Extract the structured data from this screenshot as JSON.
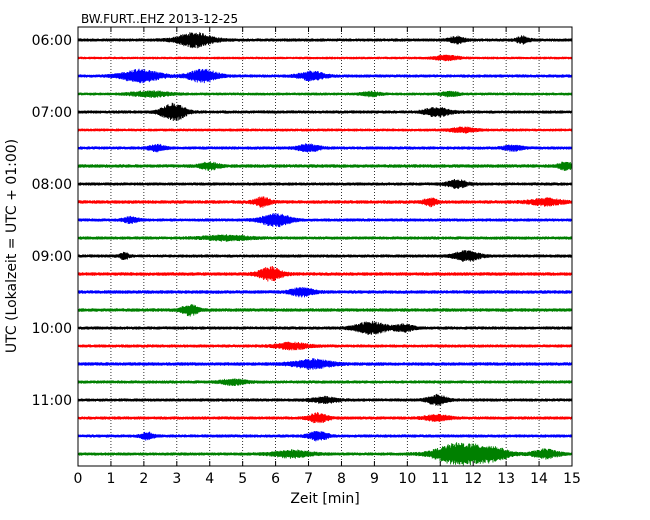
{
  "chart_data": {
    "type": "line",
    "title": "BW.FURT..EHZ 2013-12-25",
    "xlabel": "Zeit  [min]",
    "ylabel": "UTC (Lokalzeit = UTC + 01:00)",
    "xlim": [
      0,
      15
    ],
    "x_ticks": [
      "0",
      "1",
      "2",
      "3",
      "4",
      "5",
      "6",
      "7",
      "8",
      "9",
      "10",
      "11",
      "12",
      "13",
      "14",
      "15"
    ],
    "y_tick_labels": [
      "06:00",
      "07:00",
      "08:00",
      "09:00",
      "10:00",
      "11:00"
    ],
    "trace_interval_min": 15,
    "trace_start_times": [
      "06:00",
      "06:15",
      "06:30",
      "06:45",
      "07:00",
      "07:15",
      "07:30",
      "07:45",
      "08:00",
      "08:15",
      "08:30",
      "08:45",
      "09:00",
      "09:15",
      "09:30",
      "09:45",
      "10:00",
      "10:15",
      "10:30",
      "10:45",
      "11:00",
      "11:15",
      "11:30",
      "11:45"
    ],
    "trace_colors": [
      "#000000",
      "#ff0000",
      "#0000ff",
      "#008000"
    ],
    "grid": "vertical dotted",
    "series": [
      {
        "start": "06:00",
        "color": "#000000",
        "base_amplitude": 1.0,
        "events": [
          {
            "t": 3.55,
            "amp": 4.2,
            "width": 0.55
          },
          {
            "t": 11.5,
            "amp": 1.8,
            "width": 0.25
          },
          {
            "t": 13.5,
            "amp": 2.0,
            "width": 0.2
          }
        ]
      },
      {
        "start": "06:15",
        "color": "#ff0000",
        "base_amplitude": 0.8,
        "events": [
          {
            "t": 11.2,
            "amp": 1.3,
            "width": 0.4
          }
        ]
      },
      {
        "start": "06:30",
        "color": "#0000ff",
        "base_amplitude": 1.0,
        "events": [
          {
            "t": 1.9,
            "amp": 3.6,
            "width": 0.6
          },
          {
            "t": 3.8,
            "amp": 3.8,
            "width": 0.45
          },
          {
            "t": 7.1,
            "amp": 2.5,
            "width": 0.4
          }
        ]
      },
      {
        "start": "06:45",
        "color": "#008000",
        "base_amplitude": 0.9,
        "events": [
          {
            "t": 2.2,
            "amp": 1.6,
            "width": 0.6
          },
          {
            "t": 8.9,
            "amp": 1.2,
            "width": 0.3
          },
          {
            "t": 11.3,
            "amp": 1.2,
            "width": 0.3
          }
        ]
      },
      {
        "start": "07:00",
        "color": "#000000",
        "base_amplitude": 1.0,
        "events": [
          {
            "t": 2.75,
            "amp": 3.0,
            "width": 0.3
          },
          {
            "t": 3.05,
            "amp": 3.2,
            "width": 0.3
          },
          {
            "t": 10.9,
            "amp": 2.6,
            "width": 0.4
          }
        ]
      },
      {
        "start": "07:15",
        "color": "#ff0000",
        "base_amplitude": 0.9,
        "events": [
          {
            "t": 11.7,
            "amp": 1.4,
            "width": 0.4
          }
        ]
      },
      {
        "start": "07:30",
        "color": "#0000ff",
        "base_amplitude": 1.0,
        "events": [
          {
            "t": 2.4,
            "amp": 1.8,
            "width": 0.25
          },
          {
            "t": 7.0,
            "amp": 2.0,
            "width": 0.35
          },
          {
            "t": 13.2,
            "amp": 1.5,
            "width": 0.3
          }
        ]
      },
      {
        "start": "07:45",
        "color": "#008000",
        "base_amplitude": 1.1,
        "events": [
          {
            "t": 4.0,
            "amp": 2.0,
            "width": 0.3
          },
          {
            "t": 14.8,
            "amp": 2.5,
            "width": 0.2
          }
        ]
      },
      {
        "start": "08:00",
        "color": "#000000",
        "base_amplitude": 1.0,
        "events": [
          {
            "t": 11.5,
            "amp": 2.3,
            "width": 0.3
          }
        ]
      },
      {
        "start": "08:15",
        "color": "#ff0000",
        "base_amplitude": 1.1,
        "events": [
          {
            "t": 5.6,
            "amp": 2.6,
            "width": 0.25
          },
          {
            "t": 10.7,
            "amp": 2.2,
            "width": 0.2
          },
          {
            "t": 14.2,
            "amp": 1.8,
            "width": 0.5
          }
        ]
      },
      {
        "start": "08:30",
        "color": "#0000ff",
        "base_amplitude": 1.0,
        "events": [
          {
            "t": 1.6,
            "amp": 1.6,
            "width": 0.25
          },
          {
            "t": 6.0,
            "amp": 3.8,
            "width": 0.45
          }
        ]
      },
      {
        "start": "08:45",
        "color": "#008000",
        "base_amplitude": 1.0,
        "events": [
          {
            "t": 4.5,
            "amp": 1.4,
            "width": 0.7
          }
        ]
      },
      {
        "start": "09:00",
        "color": "#000000",
        "base_amplitude": 1.0,
        "events": [
          {
            "t": 1.4,
            "amp": 1.8,
            "width": 0.15
          },
          {
            "t": 11.8,
            "amp": 2.8,
            "width": 0.4
          }
        ]
      },
      {
        "start": "09:15",
        "color": "#ff0000",
        "base_amplitude": 1.1,
        "events": [
          {
            "t": 5.85,
            "amp": 4.0,
            "width": 0.35
          }
        ]
      },
      {
        "start": "09:30",
        "color": "#0000ff",
        "base_amplitude": 1.1,
        "events": [
          {
            "t": 6.8,
            "amp": 2.4,
            "width": 0.35
          }
        ]
      },
      {
        "start": "09:45",
        "color": "#008000",
        "base_amplitude": 1.1,
        "events": [
          {
            "t": 3.4,
            "amp": 3.0,
            "width": 0.25
          }
        ]
      },
      {
        "start": "10:00",
        "color": "#000000",
        "base_amplitude": 1.0,
        "events": [
          {
            "t": 8.9,
            "amp": 3.5,
            "width": 0.5
          },
          {
            "t": 9.9,
            "amp": 2.0,
            "width": 0.3
          }
        ]
      },
      {
        "start": "10:15",
        "color": "#ff0000",
        "base_amplitude": 1.0,
        "events": [
          {
            "t": 6.5,
            "amp": 1.8,
            "width": 0.5
          }
        ]
      },
      {
        "start": "10:30",
        "color": "#0000ff",
        "base_amplitude": 1.1,
        "events": [
          {
            "t": 7.1,
            "amp": 2.5,
            "width": 0.6
          }
        ]
      },
      {
        "start": "10:45",
        "color": "#008000",
        "base_amplitude": 1.0,
        "events": [
          {
            "t": 4.7,
            "amp": 1.5,
            "width": 0.4
          }
        ]
      },
      {
        "start": "11:00",
        "color": "#000000",
        "base_amplitude": 1.0,
        "events": [
          {
            "t": 10.9,
            "amp": 2.8,
            "width": 0.3
          },
          {
            "t": 7.5,
            "amp": 1.6,
            "width": 0.4
          }
        ]
      },
      {
        "start": "11:15",
        "color": "#ff0000",
        "base_amplitude": 1.0,
        "events": [
          {
            "t": 7.3,
            "amp": 2.8,
            "width": 0.3
          },
          {
            "t": 10.9,
            "amp": 1.6,
            "width": 0.4
          }
        ]
      },
      {
        "start": "11:30",
        "color": "#0000ff",
        "base_amplitude": 1.0,
        "events": [
          {
            "t": 2.1,
            "amp": 2.0,
            "width": 0.2
          },
          {
            "t": 7.3,
            "amp": 2.6,
            "width": 0.3
          }
        ]
      },
      {
        "start": "11:45",
        "color": "#008000",
        "base_amplitude": 1.0,
        "events": [
          {
            "t": 11.6,
            "amp": 6.5,
            "width": 0.75
          },
          {
            "t": 12.6,
            "amp": 3.5,
            "width": 0.5
          },
          {
            "t": 6.5,
            "amp": 2.0,
            "width": 0.6
          },
          {
            "t": 14.2,
            "amp": 2.6,
            "width": 0.4
          }
        ]
      }
    ]
  }
}
